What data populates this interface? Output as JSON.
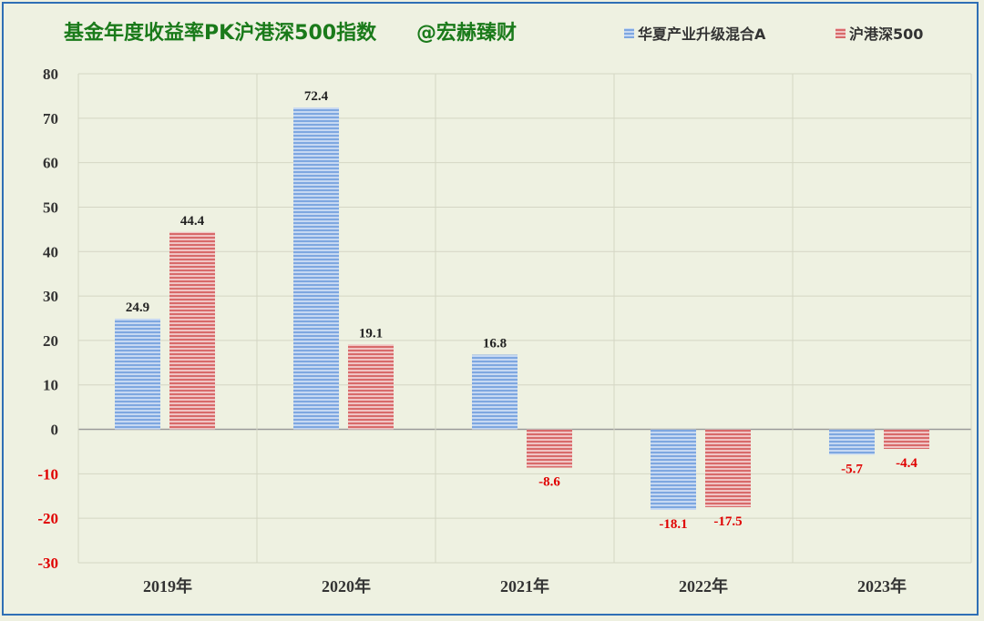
{
  "chart_data": {
    "type": "bar",
    "title": "基金年度收益率PK沪港深500指数",
    "watermark": "@宏赫臻财",
    "categories": [
      "2019年",
      "2020年",
      "2021年",
      "2022年",
      "2023年"
    ],
    "series": [
      {
        "name": "华夏产业升级混合A",
        "values": [
          24.9,
          72.4,
          16.8,
          -18.1,
          -5.7
        ],
        "color": "#5b8fd6"
      },
      {
        "name": "沪港深500",
        "values": [
          44.4,
          19.1,
          -8.6,
          -17.5,
          -4.4
        ],
        "color": "#d65b5b"
      }
    ],
    "data_labels": [
      [
        "24.9",
        "72.4",
        "16.8",
        "-18.1",
        "-5.7"
      ],
      [
        "44.4",
        "19.1",
        "-8.6",
        "-17.5",
        "-4.4"
      ]
    ],
    "yticks": [
      "80",
      "70",
      "60",
      "50",
      "40",
      "30",
      "20",
      "10",
      "0",
      "-10",
      "-20",
      "-30"
    ],
    "ylim": [
      -30,
      80
    ],
    "grid": true,
    "legend_position": "top-right",
    "colors": {
      "negative_label": "#e00000",
      "positive_label": "#222222",
      "title": "#1a7a1a"
    }
  }
}
